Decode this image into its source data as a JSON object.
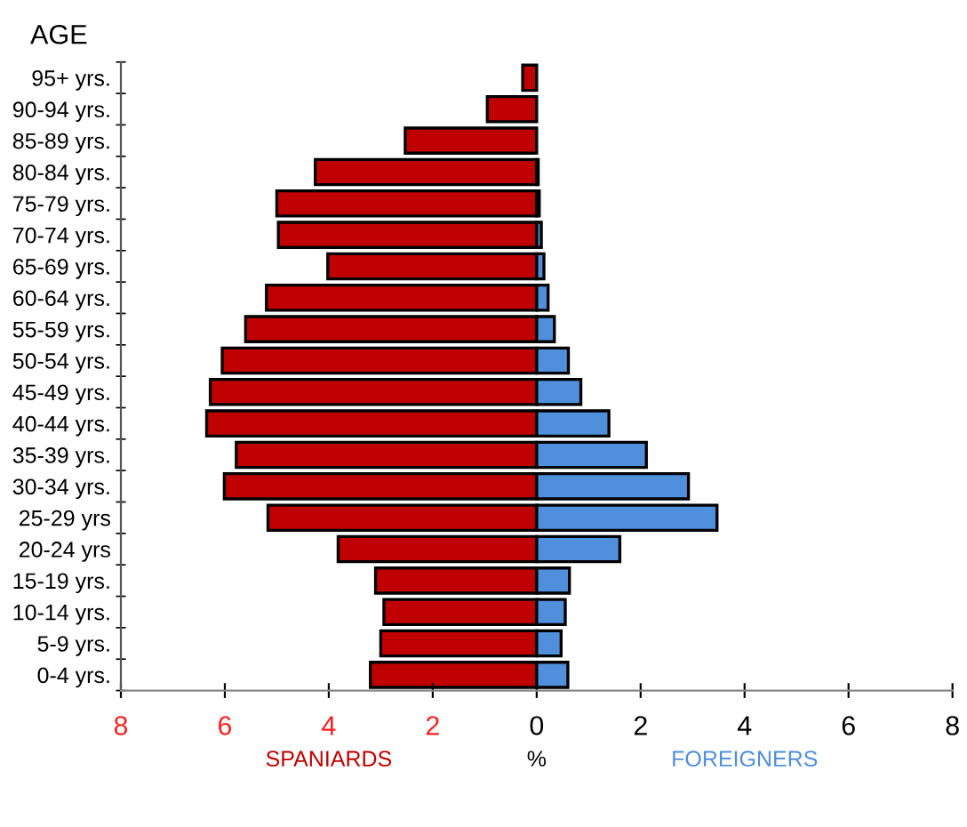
{
  "chart_data": {
    "type": "bar",
    "orientation": "horizontal",
    "ylabel": "AGE",
    "xlabel": "%",
    "categories": [
      "95+ yrs.",
      "90-94 yrs.",
      "85-89 yrs.",
      "80-84 yrs.",
      "75-79 yrs.",
      "70-74 yrs.",
      "65-69 yrs.",
      "60-64 yrs.",
      "55-59 yrs.",
      "50-54 yrs.",
      "45-49 yrs.",
      "40-44 yrs.",
      "35-39 yrs.",
      "30-34 yrs.",
      "25-29 yrs",
      "20-24 yrs",
      "15-19 yrs.",
      "10-14 yrs.",
      "5-9 yrs.",
      "0-4 yrs."
    ],
    "series": [
      {
        "name": "SPANIARDS",
        "color": "#c00000",
        "values": [
          -0.27,
          -0.95,
          -2.53,
          -4.26,
          -5.0,
          -4.97,
          -4.02,
          -5.2,
          -5.6,
          -6.05,
          -6.28,
          -6.35,
          -5.78,
          -6.01,
          -5.17,
          -3.82,
          -3.1,
          -2.94,
          -3.0,
          -3.2
        ]
      },
      {
        "name": "FOREIGNERS",
        "color": "#4f8fdb",
        "values": [
          null,
          null,
          null,
          0.03,
          0.05,
          0.09,
          0.14,
          0.22,
          0.34,
          0.61,
          0.85,
          1.39,
          2.11,
          2.92,
          3.47,
          1.6,
          0.63,
          0.55,
          0.47,
          0.6
        ]
      }
    ],
    "xlim": [
      -8,
      8
    ],
    "xticks": [
      {
        "value": -8,
        "label": "8"
      },
      {
        "value": -6,
        "label": "6"
      },
      {
        "value": -4,
        "label": "4"
      },
      {
        "value": -2,
        "label": "2"
      },
      0,
      2,
      4,
      6,
      8
    ],
    "stacked": true,
    "grid": false,
    "legend": false
  }
}
